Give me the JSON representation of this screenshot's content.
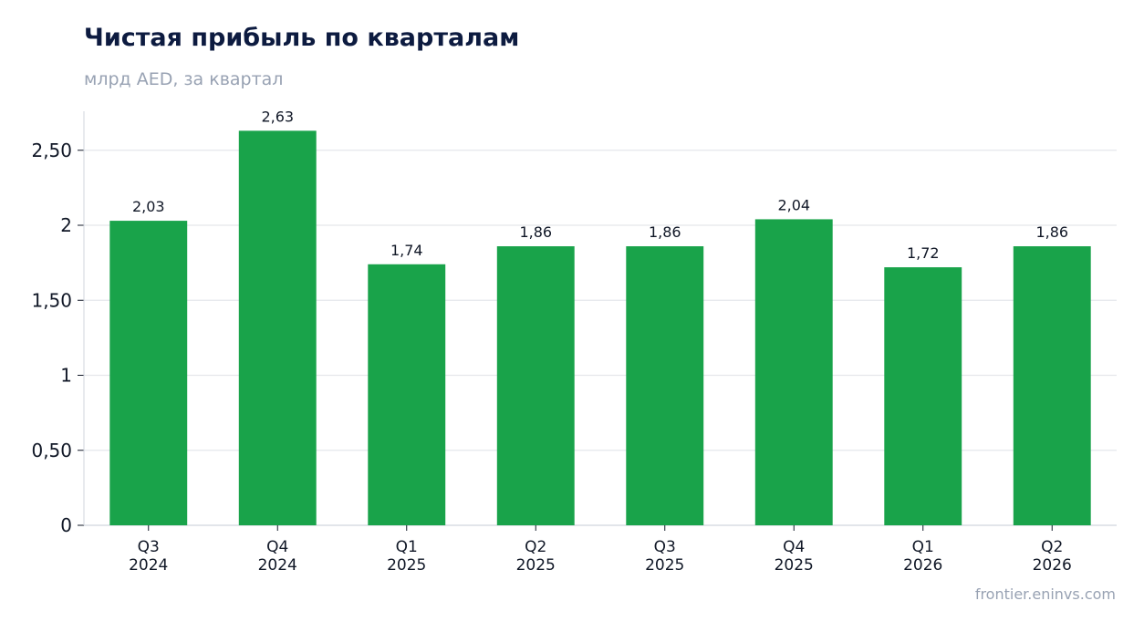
{
  "header": {
    "title": "Чистая прибыль по кварталам",
    "subtitle": "млрд AED, за квартал"
  },
  "footer": {
    "source": "frontier.eninvs.com"
  },
  "colors": {
    "bar": "#19a34a",
    "grid": "#e5e7eb",
    "axis": "#d0d5dd",
    "text": "#111827"
  },
  "chart_data": {
    "type": "bar",
    "categories": [
      [
        "Q3",
        "2024"
      ],
      [
        "Q4",
        "2024"
      ],
      [
        "Q1",
        "2025"
      ],
      [
        "Q2",
        "2025"
      ],
      [
        "Q3",
        "2025"
      ],
      [
        "Q4",
        "2025"
      ],
      [
        "Q1",
        "2026"
      ],
      [
        "Q2",
        "2026"
      ]
    ],
    "values": [
      2.03,
      2.63,
      1.74,
      1.86,
      1.86,
      2.04,
      1.72,
      1.86
    ],
    "value_labels": [
      "2,03",
      "2,63",
      "1,74",
      "1,86",
      "1,86",
      "2,04",
      "1,72",
      "1,86"
    ],
    "title": "Чистая прибыль по кварталам",
    "subtitle": "млрд AED, за квартал",
    "xlabel": "",
    "ylabel": "",
    "ylim": [
      0,
      2.76
    ],
    "yticks": [
      0,
      0.5,
      1,
      1.5,
      2,
      2.5
    ],
    "ytick_labels": [
      "0",
      "0,50",
      "1",
      "1,50",
      "2",
      "2,50"
    ],
    "grid": true,
    "legend": "none"
  }
}
